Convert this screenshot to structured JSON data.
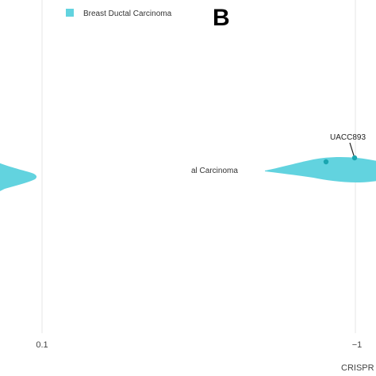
{
  "panel_letter": "B",
  "chart_data": {
    "type": "violin",
    "legend": {
      "entries": [
        {
          "name": "Breast Ductal Carcinoma",
          "color": "#62d3df"
        }
      ],
      "placement": "top-left"
    },
    "x_ticks": [
      "0.1",
      "−1"
    ],
    "x_axis_label": "CRISPR",
    "category_label": "al Carcinoma",
    "series": [
      {
        "name": "Breast Ductal Carcinoma",
        "color": "#62d3df",
        "point_color": "#1aa6b0"
      }
    ],
    "points": [
      {
        "label": "",
        "x": -0.9
      },
      {
        "label": "UACC893",
        "x": -1.0
      }
    ]
  }
}
